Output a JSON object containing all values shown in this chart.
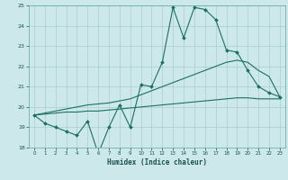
{
  "xlabel": "Humidex (Indice chaleur)",
  "bg_color": "#cce8eb",
  "grid_color": "#aaccce",
  "line_color": "#1a7060",
  "x": [
    0,
    1,
    2,
    3,
    4,
    5,
    6,
    7,
    8,
    9,
    10,
    11,
    12,
    13,
    14,
    15,
    16,
    17,
    18,
    19,
    20,
    21,
    22,
    23
  ],
  "main_series": [
    19.6,
    19.2,
    19.0,
    18.8,
    18.6,
    19.3,
    17.7,
    19.0,
    20.1,
    19.0,
    21.1,
    21.0,
    22.2,
    24.9,
    23.4,
    24.9,
    24.8,
    24.3,
    22.8,
    22.7,
    21.8,
    21.0,
    20.7,
    20.5
  ],
  "upper_trend": [
    19.6,
    19.7,
    19.8,
    19.9,
    20.0,
    20.1,
    20.15,
    20.2,
    20.3,
    20.4,
    20.6,
    20.8,
    21.0,
    21.2,
    21.4,
    21.6,
    21.8,
    22.0,
    22.2,
    22.3,
    22.2,
    21.8,
    21.5,
    20.5
  ],
  "lower_trend": [
    19.6,
    19.65,
    19.7,
    19.75,
    19.75,
    19.8,
    19.8,
    19.85,
    19.9,
    19.95,
    20.0,
    20.05,
    20.1,
    20.15,
    20.2,
    20.25,
    20.3,
    20.35,
    20.4,
    20.45,
    20.45,
    20.4,
    20.4,
    20.4
  ],
  "ylim": [
    18,
    25
  ],
  "xlim_min": -0.5,
  "xlim_max": 23.5
}
